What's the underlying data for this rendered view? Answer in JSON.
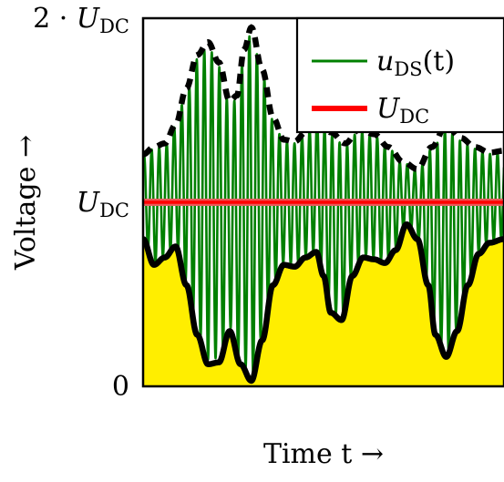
{
  "chart_data": {
    "type": "line",
    "title": "",
    "xlabel": "Time t →",
    "ylabel": "Voltage →",
    "ylim": [
      0,
      2
    ],
    "yticks": [
      {
        "value": 0,
        "label": "0"
      },
      {
        "value": 1,
        "label": "U_DC"
      },
      {
        "value": 2,
        "label": "2 · U_DC"
      }
    ],
    "grid": false,
    "legend": "top-right",
    "series": [
      {
        "name": "u_DS(t)",
        "color": "#008000"
      },
      {
        "name": "U_DC",
        "color": "#ff0000",
        "value": 1
      }
    ],
    "upper_envelope": [
      [
        0.0,
        1.26
      ],
      [
        0.03,
        1.3
      ],
      [
        0.06,
        1.32
      ],
      [
        0.09,
        1.42
      ],
      [
        0.12,
        1.62
      ],
      [
        0.15,
        1.8
      ],
      [
        0.18,
        1.87
      ],
      [
        0.21,
        1.76
      ],
      [
        0.24,
        1.55
      ],
      [
        0.26,
        1.58
      ],
      [
        0.28,
        1.83
      ],
      [
        0.3,
        1.95
      ],
      [
        0.33,
        1.72
      ],
      [
        0.36,
        1.46
      ],
      [
        0.39,
        1.34
      ],
      [
        0.42,
        1.33
      ],
      [
        0.45,
        1.38
      ],
      [
        0.48,
        1.46
      ],
      [
        0.52,
        1.38
      ],
      [
        0.56,
        1.32
      ],
      [
        0.6,
        1.4
      ],
      [
        0.64,
        1.37
      ],
      [
        0.68,
        1.3
      ],
      [
        0.72,
        1.22
      ],
      [
        0.76,
        1.18
      ],
      [
        0.8,
        1.3
      ],
      [
        0.84,
        1.42
      ],
      [
        0.88,
        1.35
      ],
      [
        0.92,
        1.3
      ],
      [
        0.96,
        1.27
      ],
      [
        1.0,
        1.28
      ]
    ],
    "lower_envelope": [
      [
        0.0,
        0.8
      ],
      [
        0.03,
        0.66
      ],
      [
        0.06,
        0.7
      ],
      [
        0.09,
        0.76
      ],
      [
        0.12,
        0.55
      ],
      [
        0.15,
        0.28
      ],
      [
        0.18,
        0.12
      ],
      [
        0.21,
        0.13
      ],
      [
        0.24,
        0.3
      ],
      [
        0.27,
        0.12
      ],
      [
        0.3,
        0.03
      ],
      [
        0.33,
        0.25
      ],
      [
        0.36,
        0.55
      ],
      [
        0.39,
        0.66
      ],
      [
        0.42,
        0.65
      ],
      [
        0.45,
        0.7
      ],
      [
        0.48,
        0.73
      ],
      [
        0.5,
        0.6
      ],
      [
        0.52,
        0.4
      ],
      [
        0.55,
        0.36
      ],
      [
        0.58,
        0.6
      ],
      [
        0.61,
        0.7
      ],
      [
        0.64,
        0.69
      ],
      [
        0.67,
        0.67
      ],
      [
        0.7,
        0.74
      ],
      [
        0.73,
        0.88
      ],
      [
        0.76,
        0.8
      ],
      [
        0.79,
        0.55
      ],
      [
        0.81,
        0.28
      ],
      [
        0.84,
        0.16
      ],
      [
        0.87,
        0.3
      ],
      [
        0.9,
        0.55
      ],
      [
        0.93,
        0.72
      ],
      [
        0.96,
        0.78
      ],
      [
        1.0,
        0.8
      ]
    ],
    "oscillation_cycles": 48
  }
}
